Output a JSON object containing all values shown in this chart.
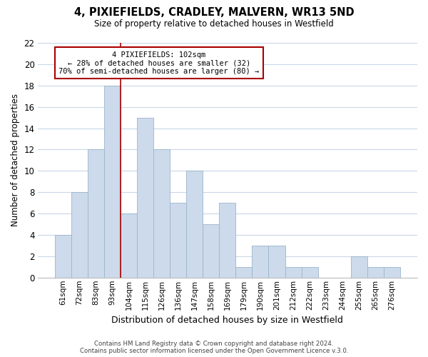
{
  "title": "4, PIXIEFIELDS, CRADLEY, MALVERN, WR13 5ND",
  "subtitle": "Size of property relative to detached houses in Westfield",
  "xlabel": "Distribution of detached houses by size in Westfield",
  "ylabel": "Number of detached properties",
  "bar_labels": [
    "61sqm",
    "72sqm",
    "83sqm",
    "93sqm",
    "104sqm",
    "115sqm",
    "126sqm",
    "136sqm",
    "147sqm",
    "158sqm",
    "169sqm",
    "179sqm",
    "190sqm",
    "201sqm",
    "212sqm",
    "222sqm",
    "233sqm",
    "244sqm",
    "255sqm",
    "265sqm",
    "276sqm"
  ],
  "bar_values": [
    4,
    8,
    12,
    18,
    6,
    15,
    12,
    7,
    10,
    5,
    7,
    1,
    3,
    3,
    1,
    1,
    0,
    0,
    2,
    1,
    1
  ],
  "bar_color": "#ccdaeb",
  "bar_edge_color": "#9ab5cc",
  "highlight_index": 3,
  "highlight_line_color": "#aa0000",
  "ylim": [
    0,
    22
  ],
  "yticks": [
    0,
    2,
    4,
    6,
    8,
    10,
    12,
    14,
    16,
    18,
    20,
    22
  ],
  "annotation_title": "4 PIXIEFIELDS: 102sqm",
  "annotation_line1": "← 28% of detached houses are smaller (32)",
  "annotation_line2": "70% of semi-detached houses are larger (80) →",
  "annotation_box_color": "#ffffff",
  "annotation_box_edge": "#aa0000",
  "footer1": "Contains HM Land Registry data © Crown copyright and database right 2024.",
  "footer2": "Contains public sector information licensed under the Open Government Licence v.3.0.",
  "background_color": "#ffffff",
  "grid_color": "#c8d8e8"
}
